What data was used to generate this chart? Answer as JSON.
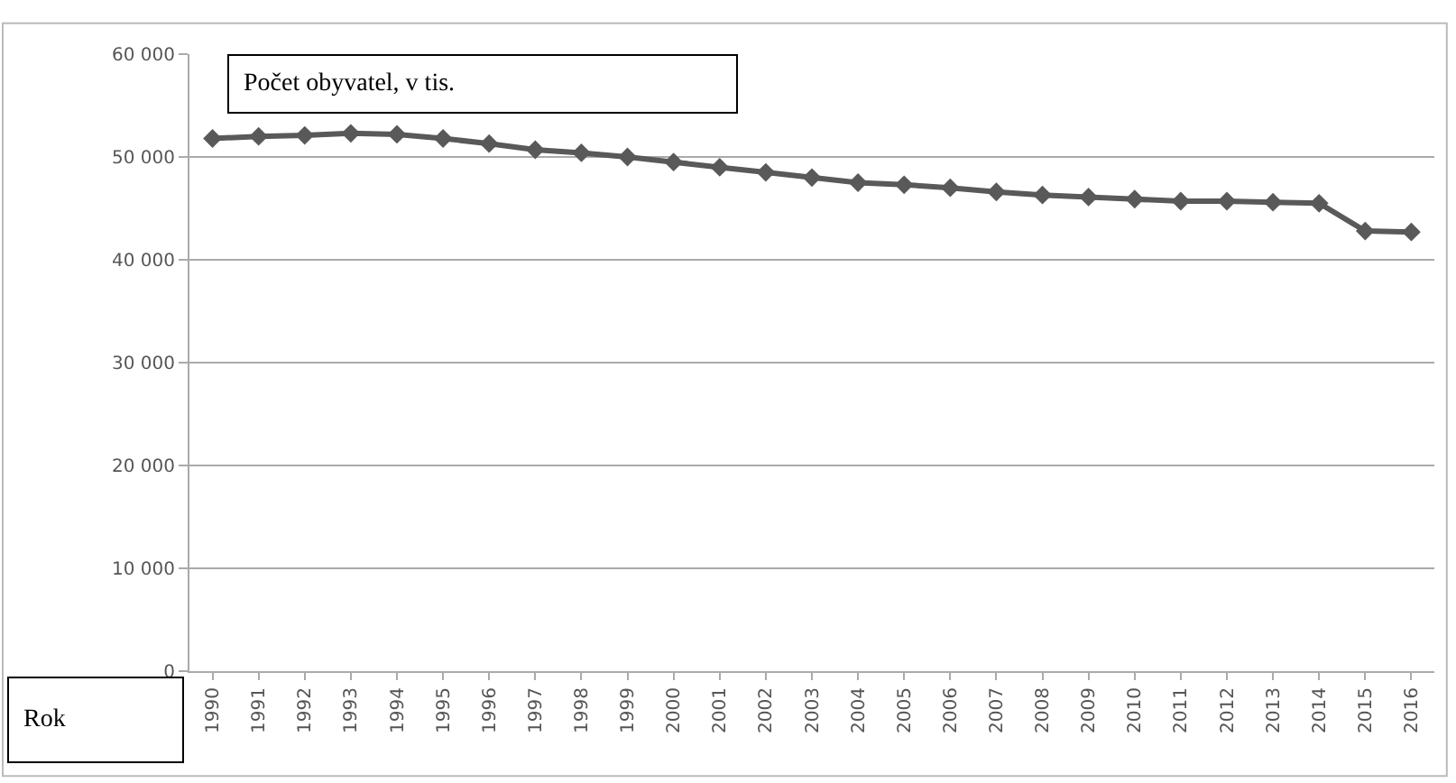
{
  "chart_data": {
    "type": "line",
    "ylabel": "Počet obyvatel, v tis.",
    "xlabel": "Rok",
    "categories": [
      "1990",
      "1991",
      "1992",
      "1993",
      "1994",
      "1995",
      "1996",
      "1997",
      "1998",
      "1999",
      "2000",
      "2001",
      "2002",
      "2003",
      "2004",
      "2005",
      "2006",
      "2007",
      "2008",
      "2009",
      "2010",
      "2011",
      "2012",
      "2013",
      "2014",
      "2015",
      "2016"
    ],
    "series": [
      {
        "color": "#595959",
        "values": [
          51800,
          52000,
          52100,
          52300,
          52200,
          51800,
          51300,
          50700,
          50400,
          50000,
          49500,
          49000,
          48500,
          48000,
          47500,
          47300,
          47000,
          46600,
          46300,
          46100,
          45900,
          45700,
          45700,
          45600,
          45500,
          42800,
          42700
        ]
      }
    ],
    "ylim": [
      0,
      60000
    ],
    "yticks": [
      {
        "value": 0,
        "label": "0"
      },
      {
        "value": 10000,
        "label": "10 000"
      },
      {
        "value": 20000,
        "label": "20 000"
      },
      {
        "value": 30000,
        "label": "30 000"
      },
      {
        "value": 40000,
        "label": "40 000"
      },
      {
        "value": 50000,
        "label": "50 000"
      },
      {
        "value": 60000,
        "label": "60 000"
      }
    ],
    "grid": "y",
    "marker": "diamond",
    "line_style": "solid"
  }
}
